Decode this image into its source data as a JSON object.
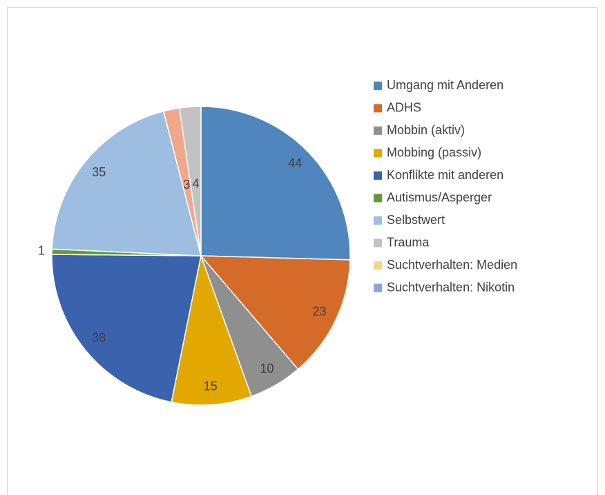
{
  "chart_data": {
    "type": "pie",
    "categories": [
      "Umgang mit Anderen",
      "ADHS",
      "Mobbin (aktiv)",
      "Mobbing (passiv)",
      "Konflikte mit anderen",
      "Autismus/Asperger",
      "Selbstwert",
      null,
      "Trauma",
      "Suchtverhalten: Medien",
      "Suchtverhalten: Nikotin"
    ],
    "values": [
      44,
      23,
      10,
      15,
      38,
      1,
      35,
      3,
      4,
      0,
      0
    ],
    "colors": [
      "#4e86bd",
      "#d46b29",
      "#8f8f8f",
      "#e2a800",
      "#3a62ad",
      "#5c9c3c",
      "#9dbde1",
      "#f0a88b",
      "#c2c2c2",
      "#fdd587",
      "#8ea4d8"
    ],
    "legend": "right"
  }
}
